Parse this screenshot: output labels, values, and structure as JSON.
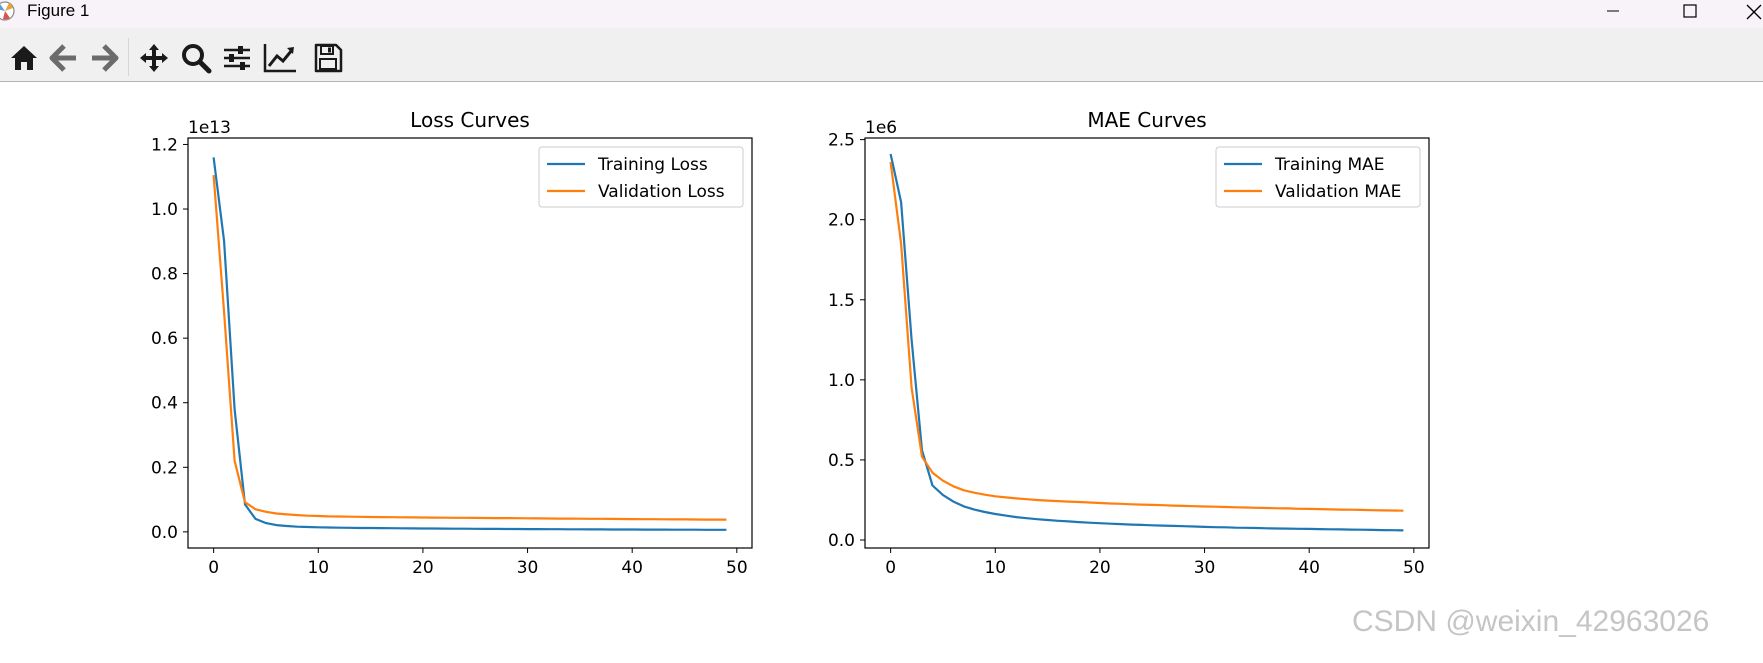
{
  "window": {
    "title": "Figure 1"
  },
  "toolbar": {
    "buttons": [
      {
        "name": "home-icon",
        "tooltip": "Home"
      },
      {
        "name": "back-icon",
        "tooltip": "Back"
      },
      {
        "name": "forward-icon",
        "tooltip": "Forward"
      },
      {
        "name": "pan-icon",
        "tooltip": "Pan"
      },
      {
        "name": "zoom-icon",
        "tooltip": "Zoom"
      },
      {
        "name": "configure-subplots-icon",
        "tooltip": "Subplots"
      },
      {
        "name": "edit-axis-icon",
        "tooltip": "Customize"
      },
      {
        "name": "save-icon",
        "tooltip": "Save"
      }
    ]
  },
  "watermark": "CSDN @weixin_42963026",
  "colors": {
    "train": "#1f77b4",
    "val": "#ff7f0e"
  },
  "chart_data": [
    {
      "type": "line",
      "title": "Loss Curves",
      "xlabel": "",
      "ylabel": "",
      "offset_label": "1e13",
      "xlim": [
        -2.45,
        51.45
      ],
      "ylim": [
        -0.05,
        1.22
      ],
      "xticks": [
        0,
        10,
        20,
        30,
        40,
        50
      ],
      "yticks": [
        0.0,
        0.2,
        0.4,
        0.6,
        0.8,
        1.0,
        1.2
      ],
      "ytick_labels": [
        "0.0",
        "0.2",
        "0.4",
        "0.6",
        "0.8",
        "1.0",
        "1.2"
      ],
      "legend_position": "upper right",
      "series": [
        {
          "name": "Training Loss",
          "x": [
            0,
            1,
            2,
            3,
            4,
            5,
            6,
            7,
            8,
            9,
            10,
            11,
            12,
            13,
            14,
            15,
            16,
            17,
            18,
            19,
            20,
            21,
            22,
            23,
            24,
            25,
            26,
            27,
            28,
            29,
            30,
            31,
            32,
            33,
            34,
            35,
            36,
            37,
            38,
            39,
            40,
            41,
            42,
            43,
            44,
            45,
            46,
            47,
            48,
            49
          ],
          "values": [
            1.16,
            0.9,
            0.38,
            0.085,
            0.04,
            0.027,
            0.021,
            0.018,
            0.016,
            0.015,
            0.014,
            0.0135,
            0.013,
            0.0125,
            0.012,
            0.0118,
            0.0115,
            0.0112,
            0.011,
            0.0108,
            0.0105,
            0.0103,
            0.0101,
            0.0099,
            0.0097,
            0.0095,
            0.0093,
            0.0091,
            0.009,
            0.0088,
            0.0086,
            0.0084,
            0.0083,
            0.0081,
            0.008,
            0.0078,
            0.0077,
            0.0076,
            0.0074,
            0.0073,
            0.0072,
            0.0071,
            0.007,
            0.0069,
            0.0068,
            0.0067,
            0.0066,
            0.0065,
            0.0064,
            0.0063
          ]
        },
        {
          "name": "Validation Loss",
          "x": [
            0,
            1,
            2,
            3,
            4,
            5,
            6,
            7,
            8,
            9,
            10,
            11,
            12,
            13,
            14,
            15,
            16,
            17,
            18,
            19,
            20,
            21,
            22,
            23,
            24,
            25,
            26,
            27,
            28,
            29,
            30,
            31,
            32,
            33,
            34,
            35,
            36,
            37,
            38,
            39,
            40,
            41,
            42,
            43,
            44,
            45,
            46,
            47,
            48,
            49
          ],
          "values": [
            1.105,
            0.68,
            0.22,
            0.092,
            0.07,
            0.062,
            0.057,
            0.054,
            0.052,
            0.05,
            0.049,
            0.048,
            0.0475,
            0.047,
            0.0465,
            0.046,
            0.0457,
            0.0454,
            0.0451,
            0.0448,
            0.0445,
            0.0442,
            0.044,
            0.0437,
            0.0435,
            0.0432,
            0.043,
            0.0427,
            0.0425,
            0.0422,
            0.042,
            0.0417,
            0.0415,
            0.0412,
            0.041,
            0.0408,
            0.0405,
            0.0403,
            0.04,
            0.0398,
            0.0396,
            0.0393,
            0.0391,
            0.0389,
            0.0387,
            0.0385,
            0.0383,
            0.0381,
            0.038,
            0.038
          ]
        }
      ]
    },
    {
      "type": "line",
      "title": "MAE Curves",
      "xlabel": "",
      "ylabel": "",
      "offset_label": "1e6",
      "xlim": [
        -2.45,
        51.45
      ],
      "ylim": [
        -0.05,
        2.51
      ],
      "xticks": [
        0,
        10,
        20,
        30,
        40,
        50
      ],
      "yticks": [
        0.0,
        0.5,
        1.0,
        1.5,
        2.0,
        2.5
      ],
      "ytick_labels": [
        "0.0",
        "0.5",
        "1.0",
        "1.5",
        "2.0",
        "2.5"
      ],
      "legend_position": "upper right",
      "series": [
        {
          "name": "Training MAE",
          "x": [
            0,
            1,
            2,
            3,
            4,
            5,
            6,
            7,
            8,
            9,
            10,
            11,
            12,
            13,
            14,
            15,
            16,
            17,
            18,
            19,
            20,
            21,
            22,
            23,
            24,
            25,
            26,
            27,
            28,
            29,
            30,
            31,
            32,
            33,
            34,
            35,
            36,
            37,
            38,
            39,
            40,
            41,
            42,
            43,
            44,
            45,
            46,
            47,
            48,
            49
          ],
          "values": [
            2.41,
            2.11,
            1.25,
            0.56,
            0.34,
            0.28,
            0.24,
            0.21,
            0.19,
            0.175,
            0.162,
            0.152,
            0.143,
            0.136,
            0.13,
            0.125,
            0.12,
            0.116,
            0.112,
            0.108,
            0.105,
            0.102,
            0.099,
            0.096,
            0.094,
            0.092,
            0.09,
            0.088,
            0.086,
            0.084,
            0.082,
            0.08,
            0.079,
            0.077,
            0.076,
            0.075,
            0.073,
            0.072,
            0.071,
            0.07,
            0.069,
            0.068,
            0.067,
            0.066,
            0.065,
            0.064,
            0.063,
            0.062,
            0.061,
            0.06
          ]
        },
        {
          "name": "Validation MAE",
          "x": [
            0,
            1,
            2,
            3,
            4,
            5,
            6,
            7,
            8,
            9,
            10,
            11,
            12,
            13,
            14,
            15,
            16,
            17,
            18,
            19,
            20,
            21,
            22,
            23,
            24,
            25,
            26,
            27,
            28,
            29,
            30,
            31,
            32,
            33,
            34,
            35,
            36,
            37,
            38,
            39,
            40,
            41,
            42,
            43,
            44,
            45,
            46,
            47,
            48,
            49
          ],
          "values": [
            2.36,
            1.85,
            0.95,
            0.52,
            0.42,
            0.37,
            0.335,
            0.31,
            0.295,
            0.283,
            0.273,
            0.266,
            0.26,
            0.255,
            0.25,
            0.246,
            0.243,
            0.24,
            0.237,
            0.234,
            0.231,
            0.228,
            0.226,
            0.223,
            0.221,
            0.219,
            0.217,
            0.215,
            0.213,
            0.211,
            0.209,
            0.208,
            0.206,
            0.204,
            0.203,
            0.201,
            0.2,
            0.198,
            0.197,
            0.195,
            0.194,
            0.193,
            0.191,
            0.19,
            0.189,
            0.188,
            0.186,
            0.185,
            0.184,
            0.183
          ]
        }
      ]
    }
  ]
}
